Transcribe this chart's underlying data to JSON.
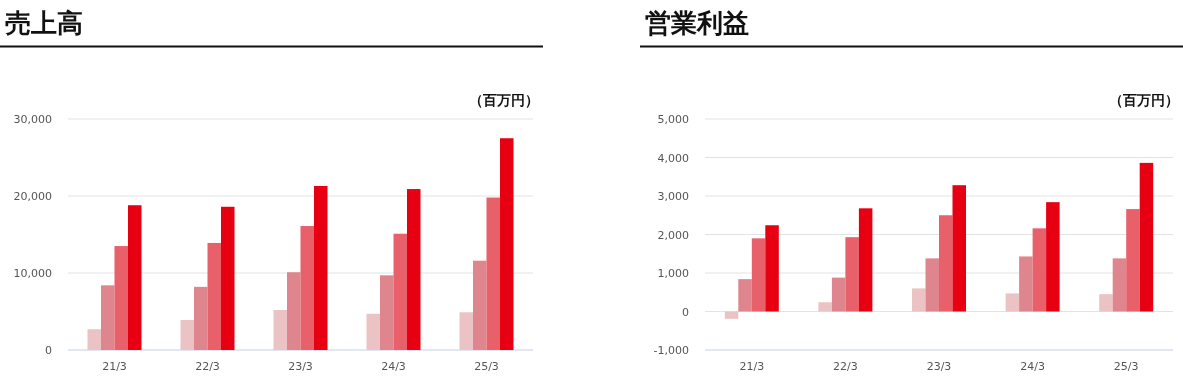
{
  "chart_data": [
    {
      "type": "bar",
      "title": "売上高",
      "ylabel": "（百万円）",
      "categories": [
        "21/3",
        "22/3",
        "23/3",
        "24/3",
        "25/3"
      ],
      "series": [
        {
          "color": "#ebc3c5",
          "values": [
            2700,
            3900,
            5200,
            4700,
            4900
          ]
        },
        {
          "color": "#df858d",
          "values": [
            8400,
            8200,
            10100,
            9700,
            11600
          ]
        },
        {
          "color": "#e8616a",
          "values": [
            13500,
            13900,
            16100,
            15100,
            19800
          ]
        },
        {
          "color": "#e60012",
          "values": [
            18800,
            18600,
            21300,
            20900,
            27500
          ]
        }
      ],
      "ylim": [
        0,
        30000
      ],
      "yticks": [
        0,
        {
          "value": 10000,
          "label": "10,000"
        },
        {
          "value": 20000,
          "label": "20,000"
        },
        {
          "value": 30000,
          "label": "30,000"
        }
      ],
      "grid": "y"
    },
    {
      "type": "bar",
      "title": "営業利益",
      "ylabel": "（百万円）",
      "categories": [
        "21/3",
        "22/3",
        "23/3",
        "24/3",
        "25/3"
      ],
      "series": [
        {
          "color": "#ebc3c5",
          "values": [
            -190,
            240,
            600,
            470,
            450
          ]
        },
        {
          "color": "#df858d",
          "values": [
            840,
            880,
            1380,
            1430,
            1380
          ]
        },
        {
          "color": "#e8616a",
          "values": [
            1900,
            1930,
            2500,
            2160,
            2660
          ]
        },
        {
          "color": "#e60012",
          "values": [
            2240,
            2680,
            3280,
            2840,
            3860
          ]
        }
      ],
      "ylim": [
        -1000,
        5000
      ],
      "yticks": [
        {
          "value": -1000,
          "label": "-1,000"
        },
        0,
        {
          "value": 1000,
          "label": "1,000"
        },
        {
          "value": 2000,
          "label": "2,000"
        },
        {
          "value": 3000,
          "label": "3,000"
        },
        {
          "value": 4000,
          "label": "4,000"
        },
        {
          "value": 5000,
          "label": "5,000"
        }
      ],
      "grid": "y"
    }
  ]
}
